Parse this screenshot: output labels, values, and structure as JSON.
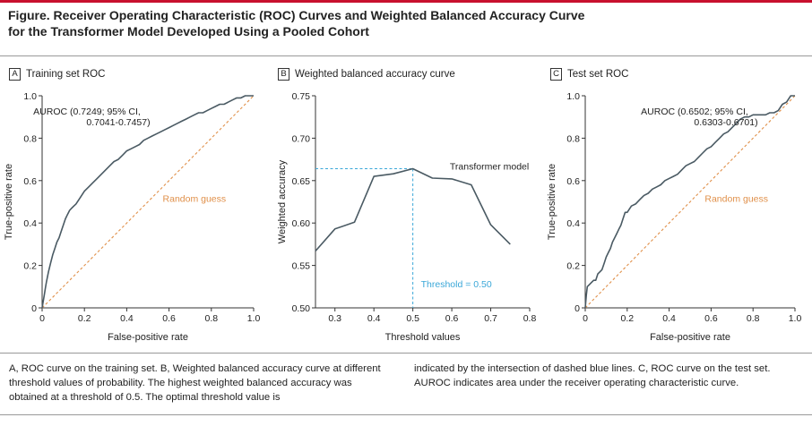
{
  "figure_title_line1": "Figure. Receiver Operating Characteristic (ROC) Curves and Weighted Balanced Accuracy Curve",
  "figure_title_line2": "for the Transformer Model Developed Using a Pooled Cohort",
  "caption_left": "A, ROC curve on the training set. B, Weighted balanced accuracy curve at different threshold values of probability. The highest weighted balanced accuracy was obtained at a threshold of 0.5. The optimal threshold value is",
  "caption_right": "indicated by the intersection of dashed blue lines. C, ROC curve on the test set. AUROC indicates area under the receiver operating characteristic curve.",
  "colors": {
    "accent": "#c8102e",
    "curve": "#4a5a63",
    "random": "#e0904a",
    "threshold": "#3aa7d8",
    "axis": "#333333"
  },
  "chart_data": [
    {
      "type": "line",
      "panel_letter": "A",
      "title": "Training set ROC",
      "xlabel": "False-positive rate",
      "ylabel": "True-positive rate",
      "xlim": [
        0,
        1
      ],
      "ylim": [
        0,
        1
      ],
      "x_ticks": [
        "0",
        "0.2",
        "0.4",
        "0.6",
        "0.8",
        "1.0"
      ],
      "y_ticks": [
        "0",
        "0.2",
        "0.4",
        "0.6",
        "0.8",
        "1.0"
      ],
      "annotation_line1": "AUROC (0.7249; 95% CI,",
      "annotation_line2": "0.7041-0.7457)",
      "random_label": "Random guess",
      "series": [
        {
          "x": [
            0,
            0.005,
            0.01,
            0.015,
            0.02,
            0.03,
            0.04,
            0.05,
            0.06,
            0.07,
            0.08,
            0.09,
            0.1,
            0.11,
            0.12,
            0.13,
            0.14,
            0.15,
            0.16,
            0.18,
            0.2,
            0.22,
            0.24,
            0.26,
            0.28,
            0.3,
            0.32,
            0.34,
            0.36,
            0.38,
            0.4,
            0.42,
            0.44,
            0.46,
            0.48,
            0.5,
            0.52,
            0.54,
            0.56,
            0.58,
            0.6,
            0.62,
            0.64,
            0.66,
            0.68,
            0.7,
            0.72,
            0.74,
            0.76,
            0.78,
            0.8,
            0.82,
            0.84,
            0.86,
            0.88,
            0.9,
            0.92,
            0.94,
            0.96,
            0.98,
            1.0
          ],
          "y": [
            0,
            0.03,
            0.06,
            0.09,
            0.12,
            0.17,
            0.21,
            0.25,
            0.28,
            0.31,
            0.33,
            0.36,
            0.39,
            0.42,
            0.44,
            0.46,
            0.47,
            0.48,
            0.49,
            0.52,
            0.55,
            0.57,
            0.59,
            0.61,
            0.63,
            0.65,
            0.67,
            0.69,
            0.7,
            0.72,
            0.74,
            0.75,
            0.76,
            0.77,
            0.79,
            0.8,
            0.81,
            0.82,
            0.83,
            0.84,
            0.85,
            0.86,
            0.87,
            0.88,
            0.89,
            0.9,
            0.91,
            0.92,
            0.92,
            0.93,
            0.94,
            0.95,
            0.96,
            0.96,
            0.97,
            0.98,
            0.99,
            0.99,
            1.0,
            1.0,
            1.0
          ]
        }
      ]
    },
    {
      "type": "line",
      "panel_letter": "B",
      "title": "Weighted balanced accuracy curve",
      "xlabel": "Threshold values",
      "ylabel": "Weighted accuracy",
      "xlim": [
        0.25,
        0.8
      ],
      "ylim": [
        0.5,
        0.75
      ],
      "x_ticks": [
        "0.3",
        "0.4",
        "0.5",
        "0.6",
        "0.7",
        "0.8"
      ],
      "y_ticks": [
        "0.50",
        "0.55",
        "0.60",
        "0.65",
        "0.70",
        "0.75"
      ],
      "series_label": "Transformer model",
      "threshold_label": "Threshold = 0.50",
      "threshold": 0.5,
      "peak": 0.664,
      "series": [
        {
          "x": [
            0.25,
            0.3,
            0.35,
            0.4,
            0.45,
            0.5,
            0.55,
            0.6,
            0.65,
            0.7,
            0.75
          ],
          "y": [
            0.567,
            0.593,
            0.601,
            0.655,
            0.658,
            0.664,
            0.653,
            0.652,
            0.645,
            0.598,
            0.575
          ]
        }
      ]
    },
    {
      "type": "line",
      "panel_letter": "C",
      "title": "Test set ROC",
      "xlabel": "False-positive rate",
      "ylabel": "True-positive rate",
      "xlim": [
        0,
        1
      ],
      "ylim": [
        0,
        1
      ],
      "x_ticks": [
        "0",
        "0.2",
        "0.4",
        "0.6",
        "0.8",
        "1.0"
      ],
      "y_ticks": [
        "0",
        "0.2",
        "0.4",
        "0.6",
        "0.8",
        "1.0"
      ],
      "annotation_line1": "AUROC (0.6502; 95% CI,",
      "annotation_line2": "0.6303-0.6701)",
      "random_label": "Random guess",
      "series": [
        {
          "x": [
            0,
            0.005,
            0.01,
            0.02,
            0.03,
            0.04,
            0.05,
            0.06,
            0.07,
            0.08,
            0.09,
            0.1,
            0.11,
            0.12,
            0.13,
            0.14,
            0.15,
            0.16,
            0.17,
            0.18,
            0.19,
            0.2,
            0.22,
            0.24,
            0.26,
            0.28,
            0.3,
            0.32,
            0.34,
            0.36,
            0.38,
            0.4,
            0.42,
            0.44,
            0.46,
            0.48,
            0.5,
            0.52,
            0.54,
            0.56,
            0.58,
            0.6,
            0.62,
            0.64,
            0.66,
            0.68,
            0.7,
            0.72,
            0.74,
            0.76,
            0.78,
            0.8,
            0.82,
            0.84,
            0.86,
            0.88,
            0.9,
            0.92,
            0.94,
            0.96,
            0.98,
            1.0
          ],
          "y": [
            0,
            0.06,
            0.1,
            0.11,
            0.12,
            0.13,
            0.13,
            0.16,
            0.17,
            0.18,
            0.21,
            0.24,
            0.26,
            0.28,
            0.31,
            0.33,
            0.35,
            0.37,
            0.39,
            0.42,
            0.45,
            0.45,
            0.48,
            0.49,
            0.51,
            0.53,
            0.54,
            0.56,
            0.57,
            0.58,
            0.6,
            0.61,
            0.62,
            0.63,
            0.65,
            0.67,
            0.68,
            0.69,
            0.71,
            0.73,
            0.75,
            0.76,
            0.78,
            0.8,
            0.82,
            0.83,
            0.85,
            0.87,
            0.89,
            0.9,
            0.9,
            0.91,
            0.91,
            0.91,
            0.91,
            0.92,
            0.92,
            0.93,
            0.96,
            0.97,
            1.0,
            1.0
          ]
        }
      ]
    }
  ]
}
